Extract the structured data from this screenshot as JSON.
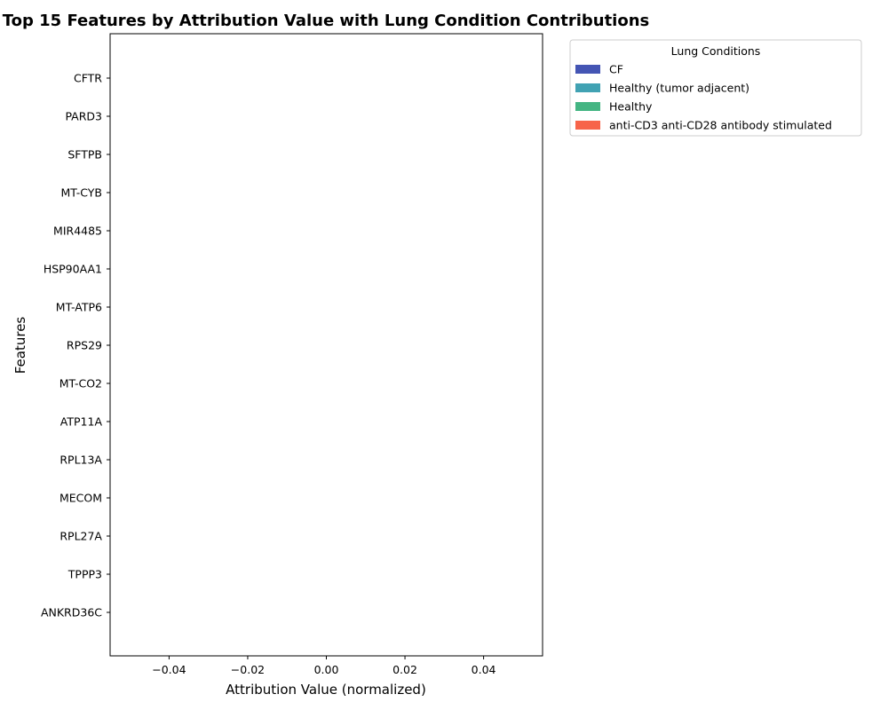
{
  "chart_data": {
    "type": "bar",
    "orientation": "horizontal",
    "stacked": true,
    "title": "Top 15 Features by Attribution Value with Lung Condition Contributions",
    "xlabel": "Attribution Value (normalized)",
    "ylabel": "Features",
    "categories": [
      "CFTR",
      "PARD3",
      "SFTPB",
      "MT-CYB",
      "MIR4485",
      "HSP90AA1",
      "MT-ATP6",
      "RPS29",
      "MT-CO2",
      "ATP11A",
      "RPL13A",
      "MECOM",
      "RPL27A",
      "TPPP3",
      "ANKRD36C"
    ],
    "xlim": [
      -0.055,
      0.055
    ],
    "xticks": [
      -0.04,
      -0.02,
      0.0,
      0.02,
      0.04
    ],
    "xtick_labels": [
      "−0.04",
      "−0.02",
      "0.00",
      "0.02",
      "0.04"
    ],
    "grid": false,
    "legend": {
      "title": "Lung Conditions",
      "placement": "outside-upper-right"
    },
    "series": [
      {
        "name": "CF",
        "color": "#4455b4",
        "values": [
          0,
          0,
          0,
          0,
          0,
          0,
          0,
          0,
          0,
          0,
          0,
          0,
          0,
          0,
          0
        ]
      },
      {
        "name": "Healthy (tumor adjacent)",
        "color": "#41a2b3",
        "values": [
          0,
          0,
          0,
          0,
          0,
          0,
          0,
          0,
          0,
          0,
          0,
          0,
          0,
          0,
          0
        ]
      },
      {
        "name": "Healthy",
        "color": "#44b583",
        "values": [
          0,
          0,
          0,
          0,
          0,
          0,
          0,
          0,
          0,
          0,
          0,
          0,
          0,
          0,
          0
        ]
      },
      {
        "name": "anti-CD3 anti-CD28 antibody stimulated",
        "color": "#f7644a",
        "values": [
          0,
          0,
          0,
          0,
          0,
          0,
          0,
          0,
          0,
          0,
          0,
          0,
          0,
          0,
          0
        ]
      }
    ]
  }
}
